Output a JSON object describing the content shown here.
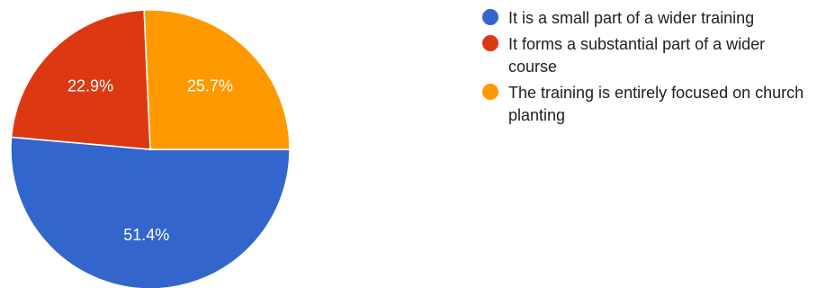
{
  "chart_data": {
    "type": "pie",
    "title": "",
    "categories": [
      "It is a small part of a wider training",
      "It forms a substantial part of a wider course",
      "The training is entirely focused on church planting"
    ],
    "values": [
      51.4,
      22.9,
      25.7
    ],
    "data_labels": [
      "51.4%",
      "22.9%",
      "25.7%"
    ],
    "colors": [
      "#3366cc",
      "#dc3912",
      "#ff9900"
    ],
    "legend_position": "right"
  }
}
